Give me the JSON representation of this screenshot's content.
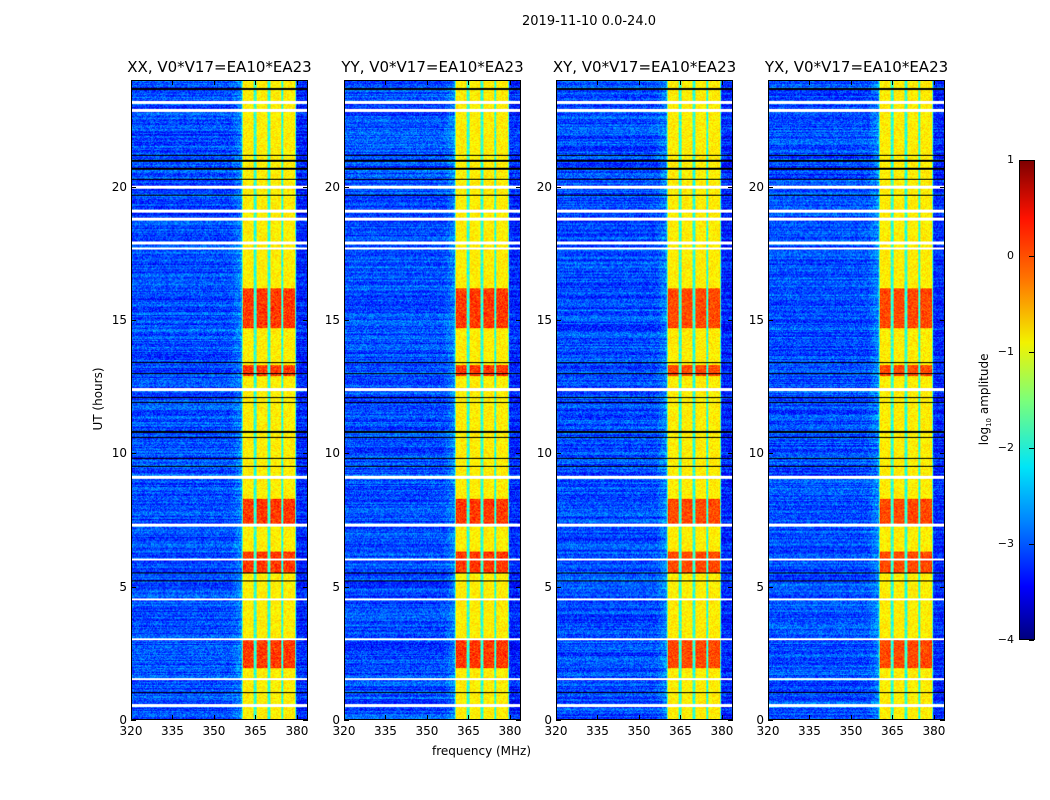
{
  "suptitle": "2019-11-10 0.0-24.0",
  "chart_data": {
    "type": "heatmap",
    "title": "2019-11-10 0.0-24.0",
    "xlabel": "frequency (MHz)",
    "ylabel": "UT (hours)",
    "xlim": [
      320,
      384
    ],
    "ylim": [
      0,
      24
    ],
    "xticks": [
      320,
      335,
      350,
      365,
      380
    ],
    "yticks": [
      0,
      5,
      10,
      15,
      20
    ],
    "panels": [
      {
        "title": "XX, V0*V17=EA10*EA23"
      },
      {
        "title": "YY, V0*V17=EA10*EA23"
      },
      {
        "title": "XY, V0*V17=EA10*EA23"
      },
      {
        "title": "YX, V0*V17=EA10*EA23"
      }
    ],
    "colorbar": {
      "label": "log10 amplitude",
      "label_main": "log",
      "label_sub": "10",
      "label_rest": " amplitude",
      "range": [
        -4,
        1
      ],
      "ticks": [
        "1",
        "0",
        "−1",
        "−2",
        "−3",
        "−4"
      ],
      "tick_values": [
        1,
        0,
        -1,
        -2,
        -3,
        -4
      ],
      "colormap": "jet"
    },
    "background_level_log10": -3.0,
    "bright_band_mhz": [
      360,
      380
    ],
    "subband_edges_mhz": [
      360,
      365,
      370,
      375,
      380
    ],
    "bright_band_level_log10": -1.0,
    "high_intensity_periods_hours": [
      [
        1.9,
        3.0
      ],
      [
        5.5,
        6.3
      ],
      [
        7.3,
        8.3
      ],
      [
        12.9,
        13.3
      ],
      [
        14.7,
        16.2
      ]
    ],
    "flagged_rows_white_hours": [
      23.2,
      22.9,
      20.0,
      19.1,
      18.8,
      17.9,
      17.7,
      12.4,
      9.1,
      7.3,
      6.0,
      4.5,
      3.0,
      1.5,
      0.5
    ],
    "flagged_rows_black_hours": [
      23.7,
      21.2,
      21.0,
      20.7,
      20.3,
      19.7,
      13.4,
      13.0,
      12.1,
      11.9,
      10.8,
      10.6,
      9.8,
      9.5,
      5.5,
      5.2,
      1.0
    ]
  }
}
